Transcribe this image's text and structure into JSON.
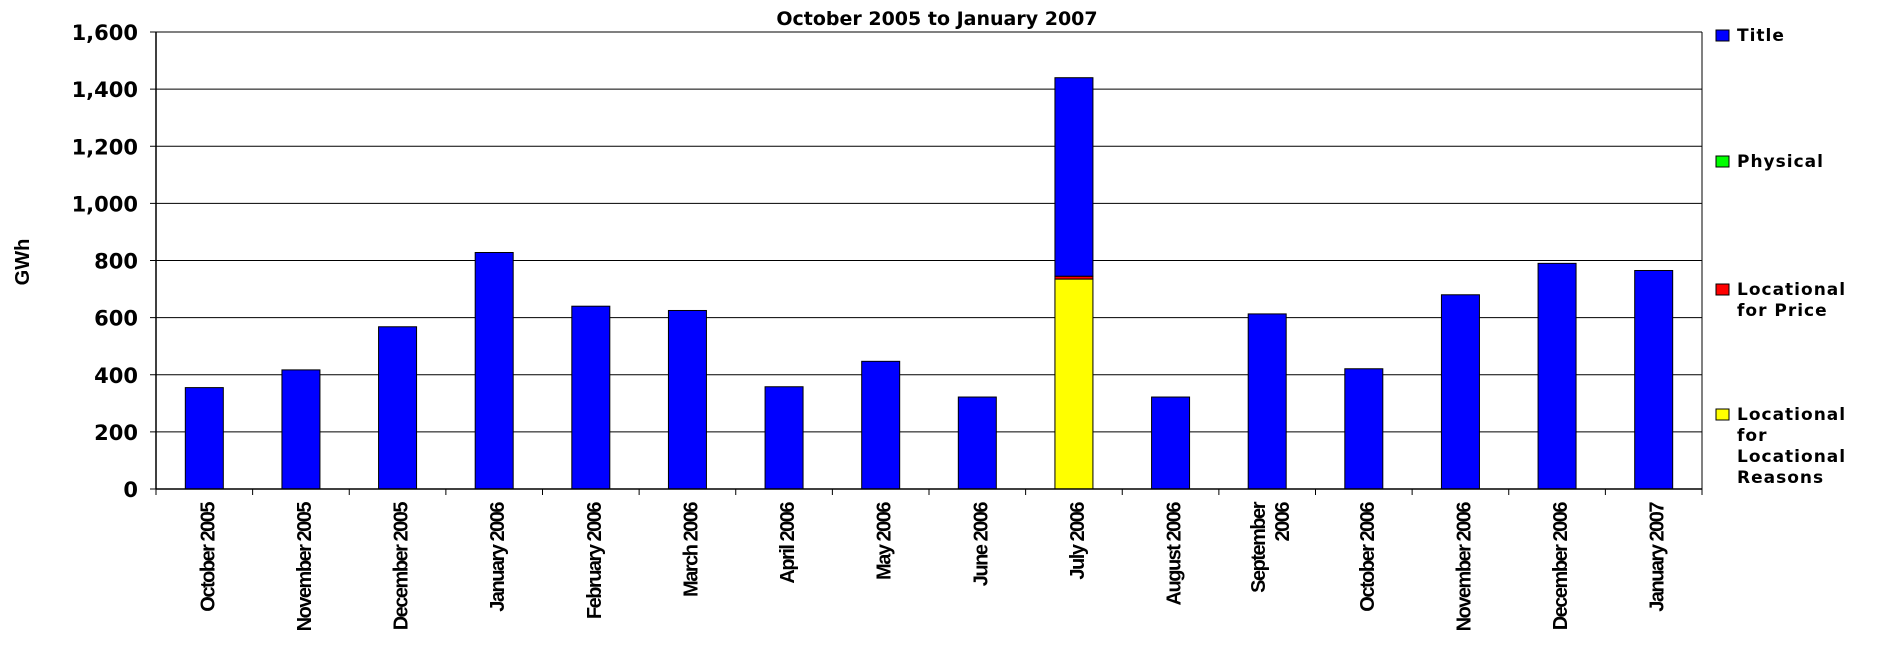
{
  "chart_data": {
    "type": "bar",
    "stacked": true,
    "title": "October 2005 to January 2007",
    "xlabel": "",
    "ylabel": "GWh",
    "ylim": [
      0,
      1600
    ],
    "yticks": [
      "0",
      "200",
      "400",
      "600",
      "800",
      "1,000",
      "1,200",
      "1,400",
      "1,600"
    ],
    "grid": true,
    "legend_position": "right",
    "categories": [
      [
        "October 2005"
      ],
      [
        "November 2005"
      ],
      [
        "December 2005"
      ],
      [
        "January 2006"
      ],
      [
        "February 2006"
      ],
      [
        "March 2006"
      ],
      [
        "April 2006"
      ],
      [
        "May 2006"
      ],
      [
        "June 2006"
      ],
      [
        "July 2006"
      ],
      [
        "August 2006"
      ],
      [
        "September",
        "2006"
      ],
      [
        "October 2006"
      ],
      [
        "November 2006"
      ],
      [
        "December 2006"
      ],
      [
        "January 2007"
      ]
    ],
    "series": [
      {
        "name": "Locational for Locational Reasons",
        "legend_lines": [
          "Locational",
          "for",
          "Locational",
          "Reasons"
        ],
        "color": "#ffff00",
        "values": [
          0,
          0,
          0,
          0,
          0,
          0,
          0,
          0,
          0,
          735,
          0,
          0,
          0,
          0,
          0,
          0
        ]
      },
      {
        "name": "Locational for Price",
        "legend_lines": [
          "Locational",
          "for Price"
        ],
        "color": "#ff0000",
        "values": [
          0,
          0,
          0,
          0,
          0,
          0,
          0,
          0,
          0,
          10,
          0,
          0,
          0,
          0,
          0,
          0
        ]
      },
      {
        "name": "Physical",
        "legend_lines": [
          "Physical"
        ],
        "color": "#00ff00",
        "values": [
          0,
          0,
          0,
          0,
          0,
          0,
          0,
          0,
          0,
          0,
          0,
          0,
          0,
          0,
          0,
          0
        ]
      },
      {
        "name": "Title",
        "legend_lines": [
          "Title"
        ],
        "color": "#0000ff",
        "values": [
          355,
          417,
          568,
          828,
          640,
          625,
          358,
          447,
          322,
          695,
          322,
          613,
          421,
          680,
          790,
          765
        ]
      }
    ],
    "legend_order": [
      "Title",
      "Physical",
      "Locational for Price",
      "Locational for Locational Reasons"
    ]
  }
}
